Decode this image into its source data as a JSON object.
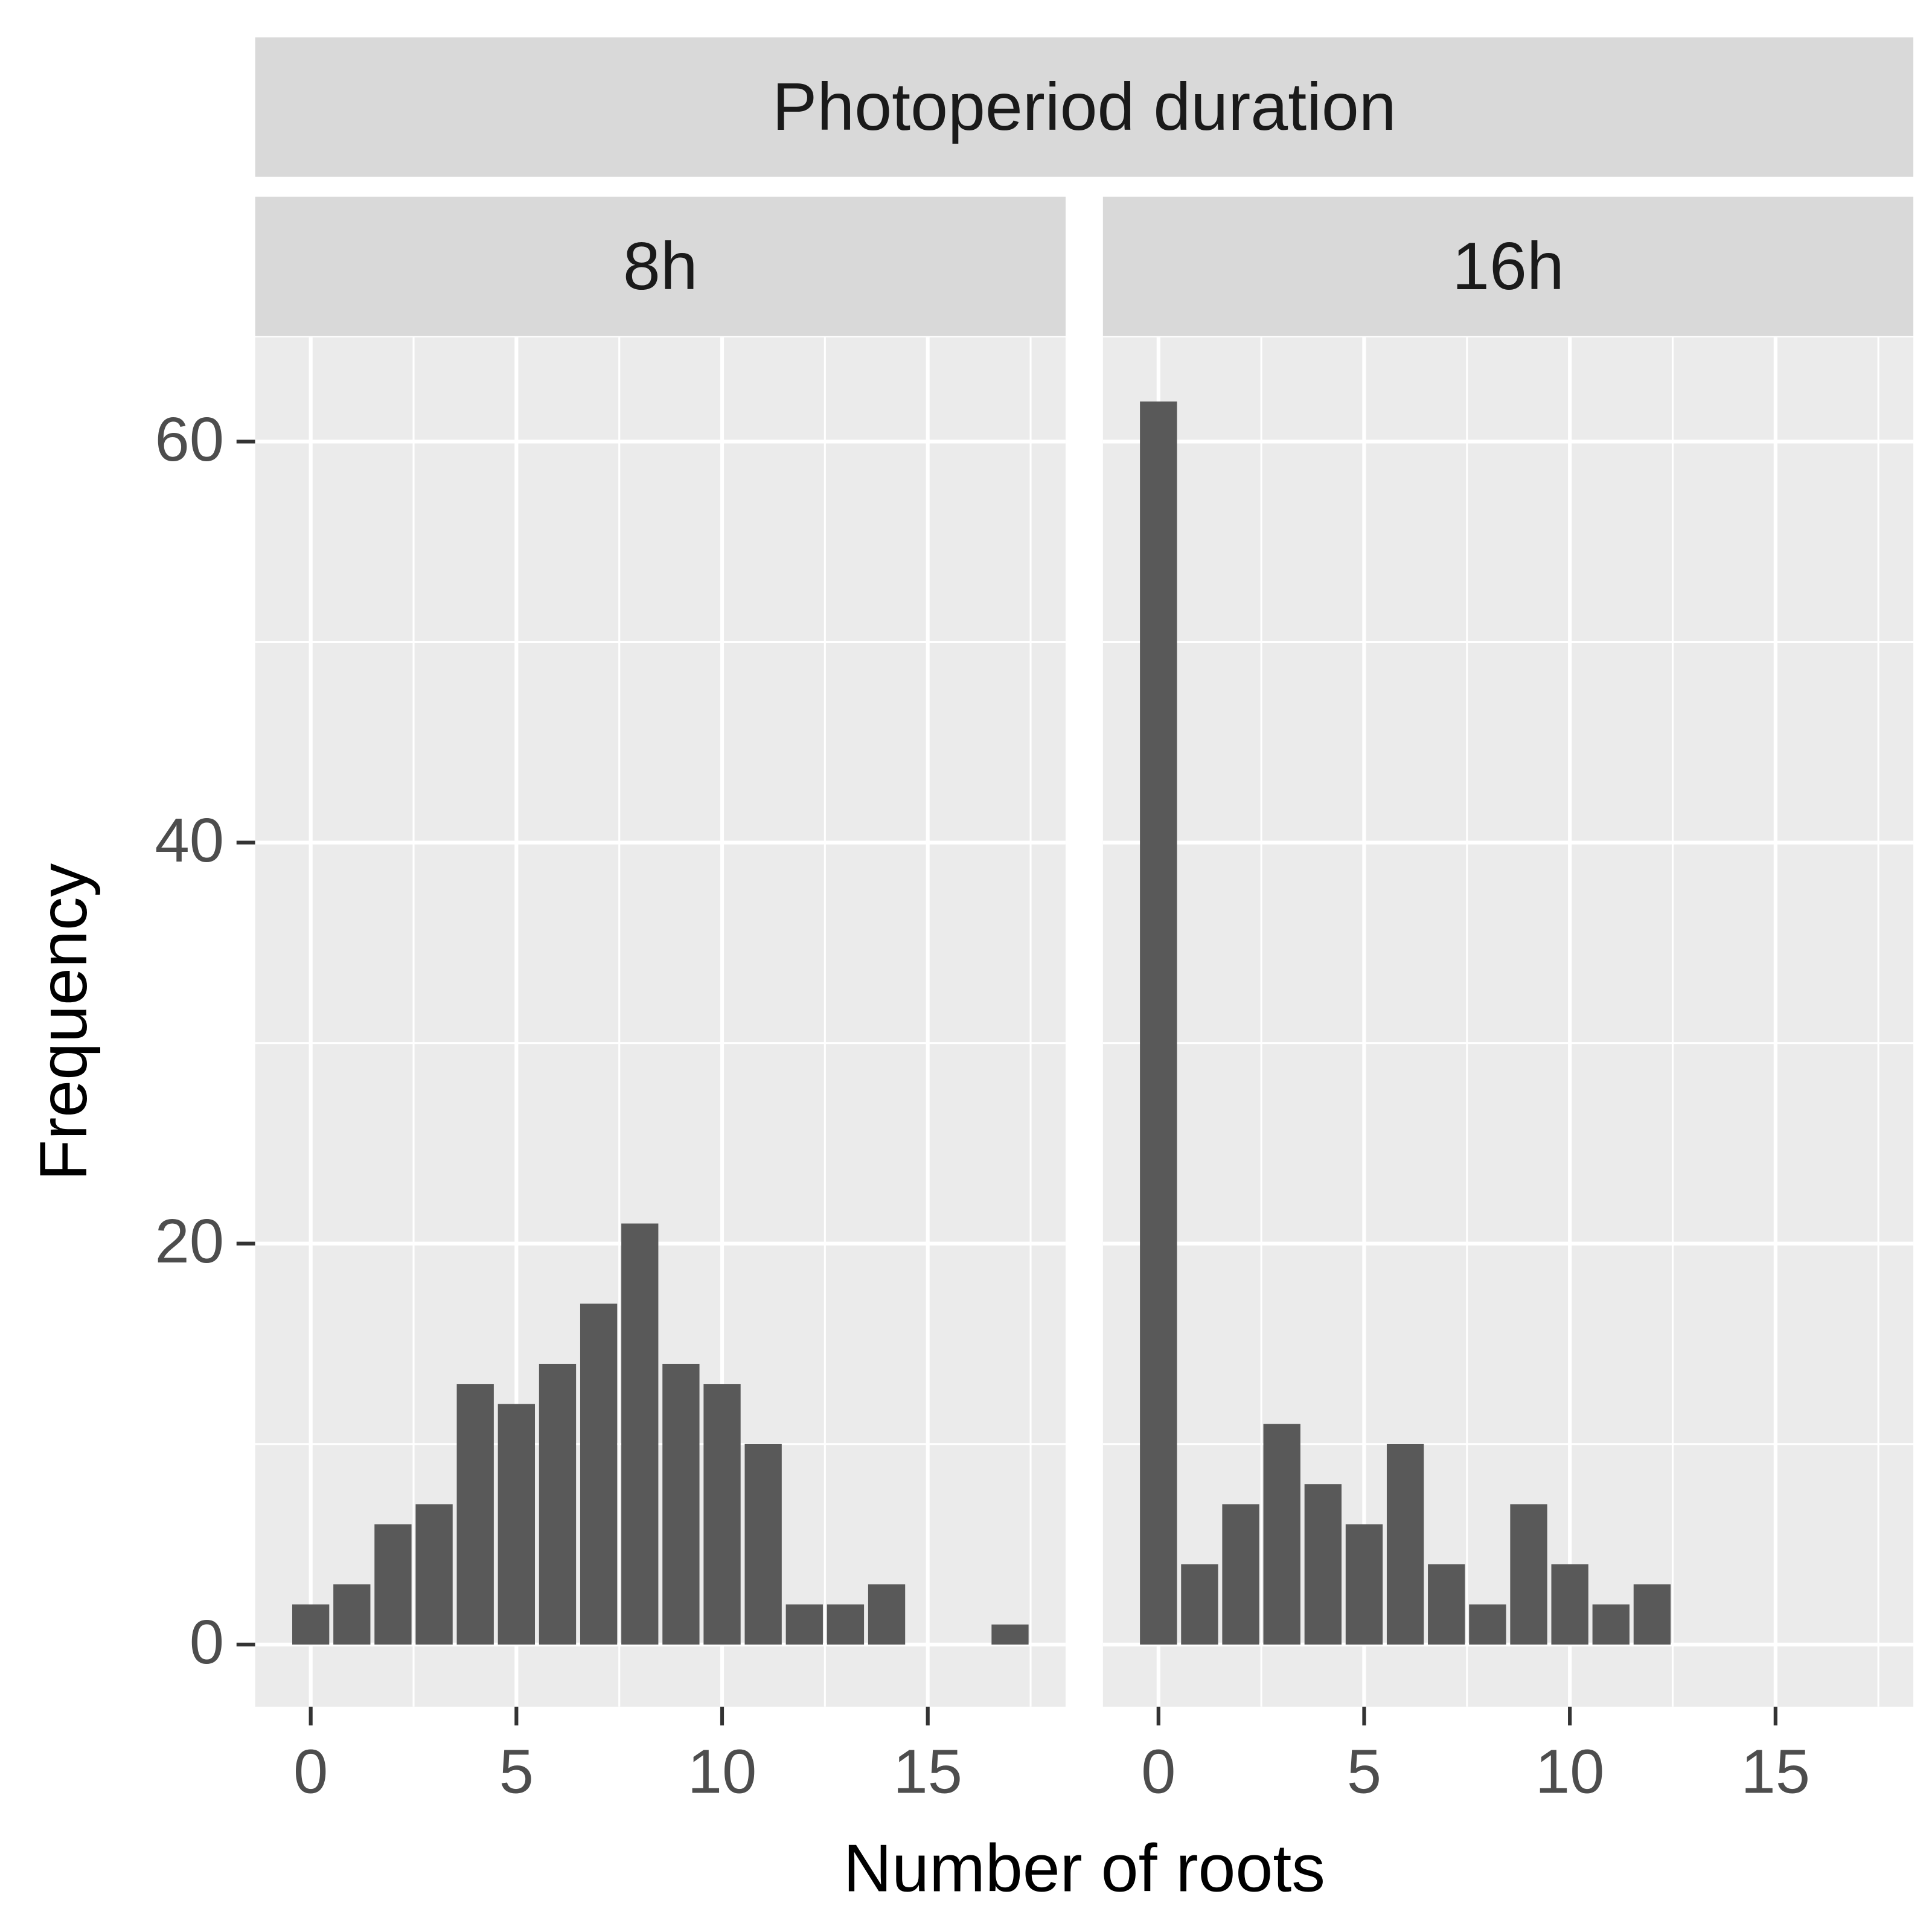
{
  "chart_data": {
    "type": "bar",
    "title": "Photoperiod duration",
    "xlabel": "Number of roots",
    "ylabel": "Frequency",
    "color": "#595959",
    "grid": true,
    "xlim": [
      -1.35,
      18.35
    ],
    "ylim": [
      -3.1,
      65.2
    ],
    "xticks": [
      0,
      5,
      10,
      15
    ],
    "yticks": [
      0,
      20,
      40,
      60
    ],
    "facets": [
      {
        "name": "8h",
        "x": [
          0,
          1,
          2,
          3,
          4,
          5,
          6,
          7,
          8,
          9,
          10,
          11,
          12,
          13,
          14,
          15,
          16,
          17
        ],
        "values": [
          2,
          3,
          6,
          7,
          13,
          12,
          14,
          17,
          21,
          14,
          13,
          10,
          2,
          2,
          3,
          0,
          0,
          1
        ]
      },
      {
        "name": "16h",
        "x": [
          0,
          1,
          2,
          3,
          4,
          5,
          6,
          7,
          8,
          9,
          10,
          11,
          12
        ],
        "values": [
          62,
          4,
          7,
          11,
          8,
          6,
          10,
          4,
          2,
          7,
          4,
          2,
          3
        ]
      }
    ]
  }
}
